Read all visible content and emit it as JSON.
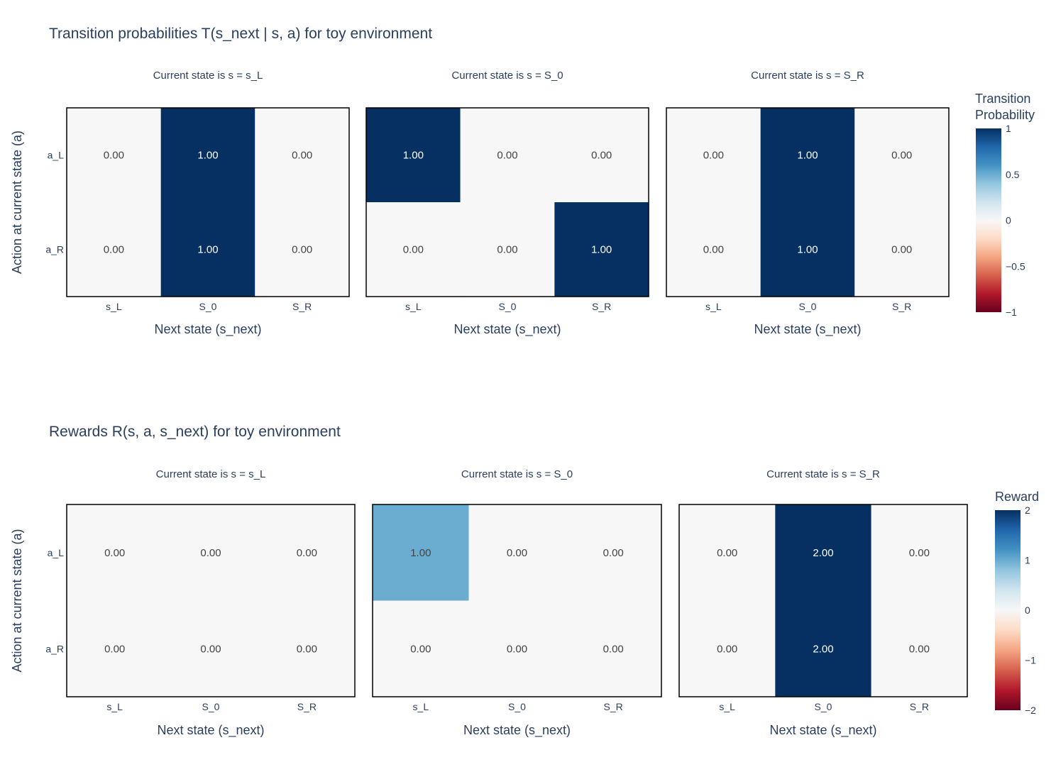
{
  "figures": [
    {
      "title": "Transition probabilities T(s_next | s, a) for toy environment",
      "ylabel": "Action at current state (a)",
      "colorbar": {
        "title_lines": [
          "Transition",
          "Probability"
        ],
        "range": [
          -1,
          1
        ],
        "tick_labels": [
          "1",
          "0.5",
          "0",
          "−0.5",
          "−1"
        ]
      }
    },
    {
      "title": "Rewards R(s, a, s_next) for toy environment",
      "ylabel": "Action at current state (a)",
      "colorbar": {
        "title_lines": [
          "Reward"
        ],
        "range": [
          -2,
          2
        ],
        "tick_labels": [
          "2",
          "1",
          "0",
          "−1",
          "−2"
        ]
      }
    }
  ],
  "chart_data": [
    {
      "type": "heatmap",
      "title": "Transition probabilities T(s_next | s, a) for toy environment",
      "subplots": [
        {
          "subtitle": "Current state is s = s_L",
          "xlabel": "Next state (s_next)",
          "x_categories": [
            "s_L",
            "S_0",
            "S_R"
          ],
          "y_categories": [
            "a_L",
            "a_R"
          ],
          "z": [
            [
              0,
              1,
              0
            ],
            [
              0,
              1,
              0
            ]
          ],
          "labels": [
            [
              "0.00",
              "1.00",
              "0.00"
            ],
            [
              "0.00",
              "1.00",
              "0.00"
            ]
          ]
        },
        {
          "subtitle": "Current state is s = S_0",
          "xlabel": "Next state (s_next)",
          "x_categories": [
            "s_L",
            "S_0",
            "S_R"
          ],
          "y_categories": [
            "a_L",
            "a_R"
          ],
          "z": [
            [
              1,
              0,
              0
            ],
            [
              0,
              0,
              1
            ]
          ],
          "labels": [
            [
              "1.00",
              "0.00",
              "0.00"
            ],
            [
              "0.00",
              "0.00",
              "1.00"
            ]
          ]
        },
        {
          "subtitle": "Current state is s = S_R",
          "xlabel": "Next state (s_next)",
          "x_categories": [
            "s_L",
            "S_0",
            "S_R"
          ],
          "y_categories": [
            "a_L",
            "a_R"
          ],
          "z": [
            [
              0,
              1,
              0
            ],
            [
              0,
              1,
              0
            ]
          ],
          "labels": [
            [
              "0.00",
              "1.00",
              "0.00"
            ],
            [
              "0.00",
              "1.00",
              "0.00"
            ]
          ]
        }
      ],
      "zlim": [
        -1,
        1
      ],
      "colorscale": "RdBu"
    },
    {
      "type": "heatmap",
      "title": "Rewards R(s, a, s_next) for toy environment",
      "subplots": [
        {
          "subtitle": "Current state is s = s_L",
          "xlabel": "Next state (s_next)",
          "x_categories": [
            "s_L",
            "S_0",
            "S_R"
          ],
          "y_categories": [
            "a_L",
            "a_R"
          ],
          "z": [
            [
              0,
              0,
              0
            ],
            [
              0,
              0,
              0
            ]
          ],
          "labels": [
            [
              "0.00",
              "0.00",
              "0.00"
            ],
            [
              "0.00",
              "0.00",
              "0.00"
            ]
          ]
        },
        {
          "subtitle": "Current state is s = S_0",
          "xlabel": "Next state (s_next)",
          "x_categories": [
            "s_L",
            "S_0",
            "S_R"
          ],
          "y_categories": [
            "a_L",
            "a_R"
          ],
          "z": [
            [
              1,
              0,
              0
            ],
            [
              0,
              0,
              0
            ]
          ],
          "labels": [
            [
              "1.00",
              "0.00",
              "0.00"
            ],
            [
              "0.00",
              "0.00",
              "0.00"
            ]
          ]
        },
        {
          "subtitle": "Current state is s = S_R",
          "xlabel": "Next state (s_next)",
          "x_categories": [
            "s_L",
            "S_0",
            "S_R"
          ],
          "y_categories": [
            "a_L",
            "a_R"
          ],
          "z": [
            [
              0,
              2,
              0
            ],
            [
              0,
              2,
              0
            ]
          ],
          "labels": [
            [
              "0.00",
              "2.00",
              "0.00"
            ],
            [
              "0.00",
              "2.00",
              "0.00"
            ]
          ]
        }
      ],
      "zlim": [
        -2,
        2
      ],
      "colorscale": "RdBu"
    }
  ]
}
